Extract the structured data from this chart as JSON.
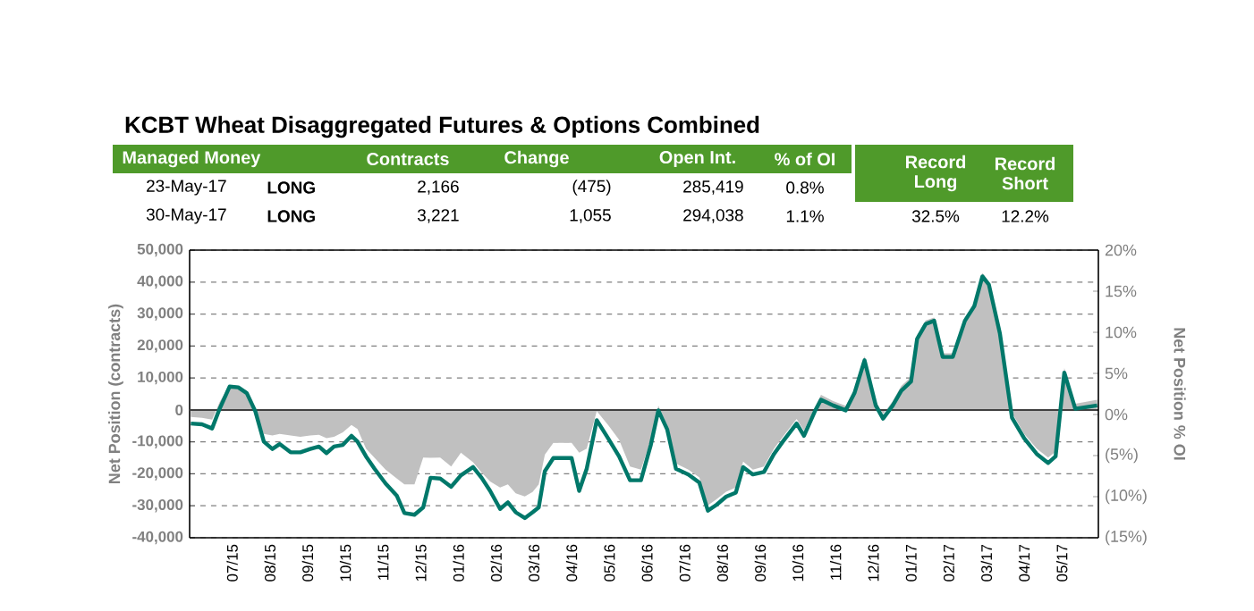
{
  "chart_data": {
    "type": "area",
    "title": "KCBT Wheat Disaggregated Futures & Options Combined",
    "ylabel": "Net Position (contracts)",
    "y2label": "Net Position % OI",
    "x": [
      "2015-05-29",
      "2015-06-07",
      "2015-06-15",
      "2015-06-21",
      "2015-06-29",
      "2015-07-06",
      "2015-07-13",
      "2015-07-20",
      "2015-07-27",
      "2015-08-03",
      "2015-08-09",
      "2015-08-18",
      "2015-08-26",
      "2015-09-03",
      "2015-09-10",
      "2015-09-16",
      "2015-09-22",
      "2015-09-29",
      "2015-10-06",
      "2015-10-11",
      "2015-10-18",
      "2015-10-25",
      "2015-11-03",
      "2015-11-12",
      "2015-11-18",
      "2015-11-26",
      "2015-12-03",
      "2015-12-09",
      "2015-12-17",
      "2015-12-26",
      "2016-01-03",
      "2016-01-13",
      "2016-01-20",
      "2016-01-27",
      "2016-02-04",
      "2016-02-10",
      "2016-02-16",
      "2016-02-23",
      "2016-02-29",
      "2016-03-05",
      "2016-03-10",
      "2016-03-17",
      "2016-04-01",
      "2016-04-07",
      "2016-04-13",
      "2016-04-21",
      "2016-04-30",
      "2016-05-09",
      "2016-05-18",
      "2016-05-27",
      "2016-06-04",
      "2016-06-10",
      "2016-06-17",
      "2016-06-24",
      "2016-07-04",
      "2016-07-13",
      "2016-07-20",
      "2016-07-27",
      "2016-08-04",
      "2016-08-12",
      "2016-08-18",
      "2016-08-26",
      "2016-09-04",
      "2016-09-12",
      "2016-09-19",
      "2016-09-30",
      "2016-10-06",
      "2016-10-15",
      "2016-10-20",
      "2016-10-30",
      "2016-11-09",
      "2016-11-16",
      "2016-11-24",
      "2016-12-03",
      "2016-12-09",
      "2016-12-17",
      "2016-12-24",
      "2017-01-01",
      "2017-01-06",
      "2017-01-13",
      "2017-01-20",
      "2017-01-27",
      "2017-02-04",
      "2017-02-13",
      "2017-02-20",
      "2017-02-26",
      "2017-03-03",
      "2017-03-12",
      "2017-03-22",
      "2017-04-01",
      "2017-04-11",
      "2017-04-20",
      "2017-04-26",
      "2017-05-03",
      "2017-05-12",
      "2017-05-30"
    ],
    "series": [
      {
        "color": "#c0c0c0",
        "values": [
          -2200,
          -2500,
          -3000,
          2500,
          7800,
          7500,
          6000,
          0,
          -7500,
          -8000,
          -7500,
          -8000,
          -8400,
          -8000,
          -7800,
          -8800,
          -8400,
          -7000,
          -4700,
          -6000,
          -12100,
          -15000,
          -18700,
          -21500,
          -23300,
          -23300,
          -14900,
          -15000,
          -14900,
          -17700,
          -13400,
          -16400,
          -19600,
          -22400,
          -24300,
          -23300,
          -26100,
          -27100,
          -25700,
          -23300,
          -14000,
          -10300,
          -10300,
          -13400,
          -12100,
          -400,
          -4700,
          -9300,
          -17700,
          -18700,
          -9300,
          1300,
          -4700,
          -16800,
          -18700,
          -21100,
          -29900,
          -28000,
          -25600,
          -24300,
          -16200,
          -18700,
          -17700,
          -12100,
          -8400,
          -2800,
          -6500,
          900,
          4700,
          2800,
          1300,
          6500,
          16800,
          2800,
          -1300,
          2800,
          7500,
          10300,
          23300,
          28000,
          28900,
          17700,
          17700,
          28900,
          33600,
          42900,
          40100,
          25200,
          -900,
          -7500,
          -12100,
          -14900,
          -13100,
          13100,
          1900,
          3200
        ]
      },
      {
        "type": "line",
        "color": "#00786a",
        "axis": "y2",
        "values": [
          -1.1,
          -1.2,
          -1.7,
          0.7,
          3.4,
          3.3,
          2.6,
          0.4,
          -3.3,
          -4.2,
          -3.6,
          -4.6,
          -4.6,
          -4.2,
          -3.9,
          -4.7,
          -3.9,
          -3.7,
          -2.6,
          -3.3,
          -5.1,
          -6.6,
          -8.4,
          -9.9,
          -12.0,
          -12.2,
          -11.3,
          -7.7,
          -7.8,
          -8.8,
          -7.4,
          -6.4,
          -7.7,
          -9.3,
          -11.5,
          -10.7,
          -11.9,
          -12.6,
          -11.9,
          -11.3,
          -6.9,
          -5.3,
          -5.3,
          -9.3,
          -6.6,
          -0.7,
          -2.9,
          -5.1,
          -8.0,
          -8.0,
          -3.7,
          0.5,
          -1.8,
          -6.6,
          -7.3,
          -8.3,
          -11.7,
          -11.0,
          -10.0,
          -9.5,
          -6.4,
          -7.3,
          -7.0,
          -4.8,
          -3.3,
          -1.1,
          -2.6,
          0.4,
          1.8,
          1.1,
          0.5,
          2.6,
          6.6,
          1.1,
          -0.5,
          1.1,
          2.9,
          4.0,
          9.2,
          11.0,
          11.4,
          7.0,
          7.0,
          11.4,
          13.2,
          16.8,
          15.8,
          9.9,
          -0.4,
          -2.9,
          -4.8,
          -5.9,
          -5.1,
          5.1,
          0.7,
          1.1
        ]
      }
    ],
    "xlim": [
      "2015-05-28",
      "2017-05-31"
    ],
    "xticks": [
      {
        "value": "2015-07",
        "label": "07/15"
      },
      {
        "value": "2015-08",
        "label": "08/15"
      },
      {
        "value": "2015-09",
        "label": "09/15"
      },
      {
        "value": "2015-10",
        "label": "10/15"
      },
      {
        "value": "2015-11",
        "label": "11/15"
      },
      {
        "value": "2015-12",
        "label": "12/15"
      },
      {
        "value": "2016-01",
        "label": "01/16"
      },
      {
        "value": "2016-02",
        "label": "02/16"
      },
      {
        "value": "2016-03",
        "label": "03/16"
      },
      {
        "value": "2016-04",
        "label": "04/16"
      },
      {
        "value": "2016-05",
        "label": "05/16"
      },
      {
        "value": "2016-06",
        "label": "06/16"
      },
      {
        "value": "2016-07",
        "label": "07/16"
      },
      {
        "value": "2016-08",
        "label": "08/16"
      },
      {
        "value": "2016-09",
        "label": "09/16"
      },
      {
        "value": "2016-10",
        "label": "10/16"
      },
      {
        "value": "2016-11",
        "label": "11/16"
      },
      {
        "value": "2016-12",
        "label": "12/16"
      },
      {
        "value": "2017-01",
        "label": "01/17"
      },
      {
        "value": "2017-02",
        "label": "02/17"
      },
      {
        "value": "2017-03",
        "label": "03/17"
      },
      {
        "value": "2017-04",
        "label": "04/17"
      },
      {
        "value": "2017-05",
        "label": "05/17"
      }
    ],
    "ylim": [
      -40000,
      50000
    ],
    "yticks": [
      {
        "value": -40000,
        "label": "-40,000"
      },
      {
        "value": -30000,
        "label": "-30,000"
      },
      {
        "value": -20000,
        "label": "-20,000"
      },
      {
        "value": -10000,
        "label": "-10,000"
      },
      0,
      {
        "value": 10000,
        "label": "10,000"
      },
      {
        "value": 20000,
        "label": "20,000"
      },
      {
        "value": 30000,
        "label": "30,000"
      },
      {
        "value": 40000,
        "label": "40,000"
      },
      {
        "value": 50000,
        "label": "50,000"
      }
    ],
    "y2lim": [
      -15,
      20
    ],
    "y2ticks": [
      {
        "value": -15,
        "label": "(15%)"
      },
      {
        "value": -10,
        "label": "(10%)"
      },
      {
        "value": -5,
        "label": "(5%)"
      },
      {
        "value": 0,
        "label": "0%"
      },
      {
        "value": 5,
        "label": "5%"
      },
      {
        "value": 10,
        "label": "10%"
      },
      {
        "value": 15,
        "label": "15%"
      },
      {
        "value": 20,
        "label": "20%"
      }
    ],
    "grid": "y",
    "ref_lines": [
      {
        "axis": "y",
        "value": 0,
        "color": "#404040"
      }
    ],
    "annotations": [
      "Managed Money",
      "Contracts",
      "Change",
      "Open Int.",
      "% of OI",
      "Record Long",
      "Record Short",
      "23-May-17",
      "LONG",
      "2,166",
      "(475)",
      "285,419",
      "0.8%",
      "30-May-17",
      "LONG",
      "3,221",
      "1,055",
      "294,038",
      "1.1%",
      "32.5%",
      "12.2%"
    ]
  }
}
